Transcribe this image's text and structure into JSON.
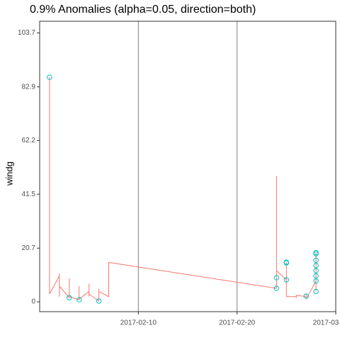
{
  "chart_data": {
    "type": "line",
    "title": "0.9% Anomalies (alpha=0.05, direction=both)",
    "y_label": "windg",
    "xlim": [
      "2017-01-31",
      "2017-03-02"
    ],
    "xticks": [
      "2017-02-10",
      "2017-02-20",
      {
        "value": "2017-03-02",
        "label": "2017-03"
      }
    ],
    "ylim": [
      -3.8,
      108.2
    ],
    "yticks": [
      0,
      20.7,
      41.5,
      62.2,
      82.9,
      103.7
    ],
    "xgrid": true,
    "series": [
      {
        "color": "#F8766D",
        "marker": "line",
        "x": [
          "2017-02-01",
          "2017-02-01",
          "2017-02-01",
          "2017-02-01",
          "2017-02-01",
          "2017-02-02",
          "2017-02-02",
          "2017-02-02",
          "2017-02-02",
          "2017-02-02",
          "2017-02-03",
          "2017-02-03",
          "2017-02-03",
          "2017-02-03",
          "2017-02-03",
          "2017-02-04",
          "2017-02-04",
          "2017-02-04",
          "2017-02-04",
          "2017-02-04",
          "2017-02-05",
          "2017-02-05",
          "2017-02-05",
          "2017-02-05",
          "2017-02-06",
          "2017-02-06",
          "2017-02-06",
          "2017-02-06",
          "2017-02-07",
          "2017-02-07",
          "2017-02-24",
          "2017-02-24",
          "2017-02-24",
          "2017-02-24",
          "2017-02-24",
          "2017-02-25",
          "2017-02-25",
          "2017-02-25",
          "2017-02-25",
          "2017-02-25",
          "2017-02-25",
          "2017-02-26",
          "2017-02-26",
          "2017-02-26",
          "2017-02-27",
          "2017-02-27",
          "2017-02-27",
          "2017-02-27",
          "2017-02-28",
          "2017-02-28",
          "2017-02-28",
          "2017-02-28",
          "2017-02-28",
          "2017-02-28",
          "2017-02-28",
          "2017-02-28",
          "2017-02-28",
          "2017-02-28"
        ],
        "values": [
          86.6,
          47,
          5,
          8,
          3,
          10,
          4,
          11,
          2,
          6,
          1.6,
          9,
          3,
          7,
          2,
          0.8,
          6,
          2,
          5,
          1,
          4,
          7,
          2,
          3,
          0.3,
          5,
          1,
          4,
          2,
          15.2,
          5.2,
          48.5,
          9.3,
          6,
          12,
          8.5,
          15.3,
          15,
          10,
          3,
          2,
          2,
          1.5,
          2.5,
          2,
          3,
          2.2,
          1,
          8,
          18.5,
          4,
          16,
          12,
          19,
          6,
          10,
          14,
          4
        ]
      },
      {
        "color": "#00BFC4",
        "marker": "circle",
        "x": [
          "2017-02-01",
          "2017-02-03",
          "2017-02-04",
          "2017-02-06",
          "2017-02-24",
          "2017-02-24",
          "2017-02-25",
          "2017-02-25",
          "2017-02-25",
          "2017-02-27",
          "2017-02-28",
          "2017-02-28",
          "2017-02-28",
          "2017-02-28",
          "2017-02-28",
          "2017-02-28",
          "2017-02-28",
          "2017-02-28"
        ],
        "values": [
          86.6,
          1.6,
          0.8,
          0.3,
          9.3,
          5.2,
          8.5,
          15.3,
          15,
          2.2,
          8,
          18.5,
          16,
          19,
          14,
          12,
          10,
          4
        ]
      }
    ]
  }
}
